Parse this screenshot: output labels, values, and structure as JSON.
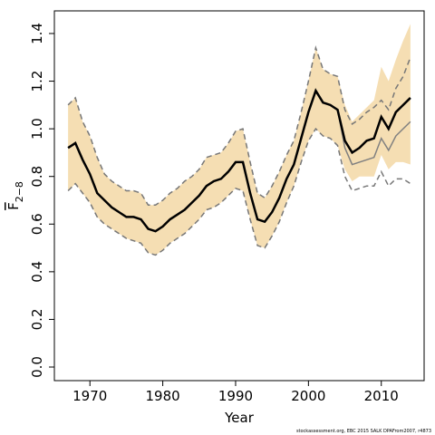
{
  "chart_data": {
    "type": "line",
    "xlabel": "Year",
    "ylabel": "F",
    "ylabel_subscript": "2−8",
    "footnote": "stockassessment.org, EBC 2015 SALK DPAFrom2007, r4873",
    "x": [
      1967,
      1968,
      1969,
      1970,
      1971,
      1972,
      1973,
      1974,
      1975,
      1976,
      1977,
      1978,
      1979,
      1980,
      1981,
      1982,
      1983,
      1984,
      1985,
      1986,
      1987,
      1988,
      1989,
      1990,
      1991,
      1992,
      1993,
      1994,
      1995,
      1996,
      1997,
      1998,
      1999,
      2000,
      2001,
      2002,
      2003,
      2004,
      2005,
      2006,
      2007,
      2008,
      2009,
      2010,
      2011,
      2012,
      2013,
      2014
    ],
    "band": {
      "color": "#f5deb3",
      "upper": [
        1.1,
        1.13,
        1.03,
        0.97,
        0.88,
        0.81,
        0.78,
        0.76,
        0.74,
        0.74,
        0.73,
        0.68,
        0.68,
        0.7,
        0.73,
        0.75,
        0.78,
        0.8,
        0.83,
        0.88,
        0.89,
        0.9,
        0.94,
        0.99,
        1.0,
        0.86,
        0.73,
        0.71,
        0.76,
        0.82,
        0.89,
        0.95,
        1.07,
        1.2,
        1.34,
        1.25,
        1.23,
        1.22,
        1.1,
        1.03,
        1.06,
        1.09,
        1.12,
        1.26,
        1.2,
        1.29,
        1.37,
        1.44
      ],
      "lower": [
        0.74,
        0.77,
        0.73,
        0.69,
        0.63,
        0.6,
        0.58,
        0.56,
        0.54,
        0.53,
        0.52,
        0.48,
        0.47,
        0.49,
        0.52,
        0.54,
        0.56,
        0.59,
        0.62,
        0.66,
        0.67,
        0.69,
        0.72,
        0.75,
        0.74,
        0.62,
        0.51,
        0.5,
        0.55,
        0.61,
        0.69,
        0.76,
        0.86,
        0.95,
        1.0,
        0.97,
        0.96,
        0.93,
        0.83,
        0.78,
        0.8,
        0.8,
        0.8,
        0.89,
        0.83,
        0.86,
        0.86,
        0.85
      ]
    },
    "series": [
      {
        "color": "#777777",
        "dash": true,
        "values": [
          1.1,
          1.13,
          1.03,
          0.97,
          0.88,
          0.81,
          0.78,
          0.76,
          0.74,
          0.74,
          0.73,
          0.68,
          0.68,
          0.7,
          0.73,
          0.75,
          0.78,
          0.8,
          0.83,
          0.88,
          0.89,
          0.9,
          0.94,
          0.99,
          1.0,
          0.86,
          0.73,
          0.71,
          0.76,
          0.82,
          0.89,
          0.95,
          1.07,
          1.2,
          1.34,
          1.25,
          1.23,
          1.22,
          1.08,
          1.02,
          1.04,
          1.07,
          1.09,
          1.12,
          1.08,
          1.17,
          1.22,
          1.3
        ]
      },
      {
        "color": "#777777",
        "dash": true,
        "values": [
          0.74,
          0.77,
          0.73,
          0.69,
          0.63,
          0.6,
          0.58,
          0.56,
          0.54,
          0.53,
          0.52,
          0.48,
          0.47,
          0.49,
          0.52,
          0.54,
          0.56,
          0.59,
          0.62,
          0.66,
          0.67,
          0.69,
          0.72,
          0.75,
          0.74,
          0.62,
          0.51,
          0.5,
          0.55,
          0.61,
          0.69,
          0.76,
          0.86,
          0.95,
          1.0,
          0.97,
          0.96,
          0.93,
          0.8,
          0.74,
          0.75,
          0.76,
          0.76,
          0.82,
          0.76,
          0.79,
          0.79,
          0.77
        ]
      },
      {
        "color": "#808080",
        "dash": false,
        "values": [
          0.92,
          0.94,
          0.87,
          0.81,
          0.73,
          0.7,
          0.67,
          0.65,
          0.63,
          0.63,
          0.62,
          0.58,
          0.57,
          0.59,
          0.62,
          0.64,
          0.66,
          0.69,
          0.72,
          0.76,
          0.78,
          0.79,
          0.82,
          0.86,
          0.86,
          0.73,
          0.62,
          0.61,
          0.65,
          0.71,
          0.79,
          0.85,
          0.96,
          1.07,
          1.16,
          1.11,
          1.1,
          1.08,
          0.92,
          0.85,
          0.86,
          0.87,
          0.88,
          0.96,
          0.91,
          0.97,
          1.0,
          1.03
        ]
      },
      {
        "color": "#000000",
        "dash": false,
        "values": [
          0.92,
          0.94,
          0.87,
          0.81,
          0.73,
          0.7,
          0.67,
          0.65,
          0.63,
          0.63,
          0.62,
          0.58,
          0.57,
          0.59,
          0.62,
          0.64,
          0.66,
          0.69,
          0.72,
          0.76,
          0.78,
          0.79,
          0.82,
          0.86,
          0.86,
          0.73,
          0.62,
          0.61,
          0.65,
          0.71,
          0.79,
          0.85,
          0.96,
          1.07,
          1.16,
          1.11,
          1.1,
          1.08,
          0.95,
          0.9,
          0.92,
          0.95,
          0.96,
          1.05,
          1.0,
          1.07,
          1.1,
          1.13
        ]
      }
    ],
    "xlim": [
      1965.12,
      2015.88
    ],
    "ylim": [
      -0.057,
      1.495
    ],
    "xticks": [
      1970,
      1980,
      1990,
      2000,
      2010
    ],
    "yticks": [
      {
        "value": 0,
        "label": "0.0"
      },
      0.2,
      0.4,
      0.6,
      0.8,
      {
        "value": 1,
        "label": "1.0"
      },
      1.2,
      1.4
    ]
  }
}
